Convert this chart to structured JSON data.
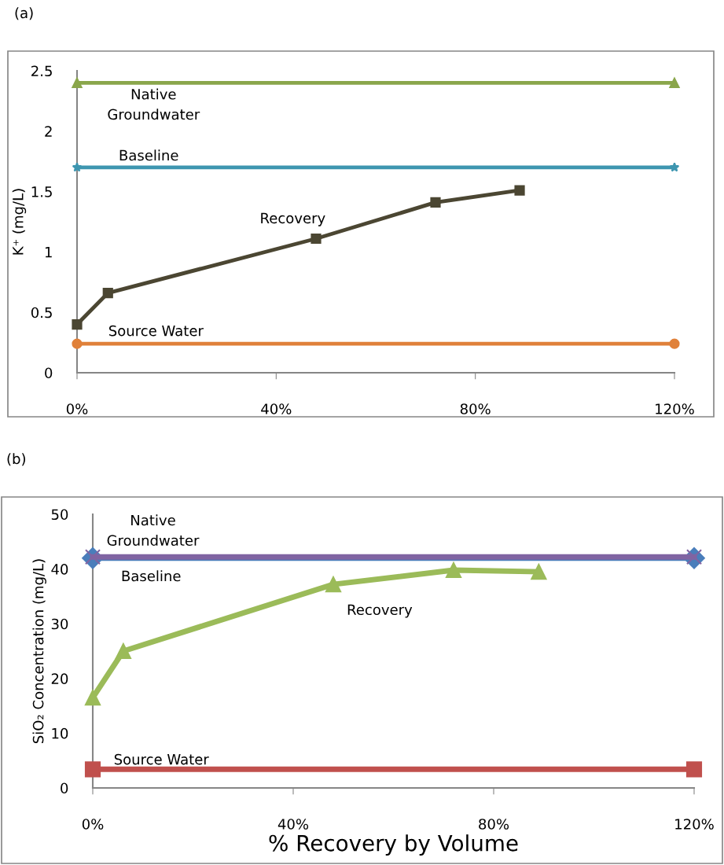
{
  "chart_data": [
    {
      "type": "line",
      "title": "(a)",
      "ylabel": "K⁺ (mg/L)",
      "xlim": [
        0,
        120
      ],
      "ylim": [
        0,
        2.5
      ],
      "xticks": [
        {
          "value": 0,
          "label": "0%"
        },
        {
          "value": 40,
          "label": "40%"
        },
        {
          "value": 80,
          "label": "80%"
        },
        {
          "value": 120,
          "label": "120%"
        }
      ],
      "yticks": [
        0,
        0.5,
        1,
        1.5,
        2,
        2.5
      ],
      "grid": false,
      "legend": false,
      "line_style": "solid",
      "series": [
        {
          "name": "Native\nGroundwater",
          "color": "#8aa64b",
          "marker": "triangle",
          "x": [
            0,
            120
          ],
          "values": [
            2.4,
            2.4
          ]
        },
        {
          "name": "Baseline",
          "color": "#3e96b0",
          "marker": "star",
          "x": [
            0,
            120
          ],
          "values": [
            1.7,
            1.7
          ]
        },
        {
          "name": "Recovery",
          "color": "#4b4632",
          "marker": "square",
          "x": [
            0,
            6.2,
            48,
            72,
            88.9
          ],
          "values": [
            0.4,
            0.66,
            1.11,
            1.41,
            1.51
          ]
        },
        {
          "name": "Source Water",
          "color": "#e0813a",
          "marker": "circle",
          "x": [
            0,
            120
          ],
          "values": [
            0.24,
            0.24
          ]
        }
      ]
    },
    {
      "type": "line",
      "title": "(b)",
      "xlabel": "% Recovery by Volume",
      "ylabel": "SiO₂ Concentration (mg/L)",
      "xlim": [
        0,
        120
      ],
      "ylim": [
        0,
        50
      ],
      "xticks": [
        {
          "value": 0,
          "label": "0%"
        },
        {
          "value": 40,
          "label": "40%"
        },
        {
          "value": 80,
          "label": "80%"
        },
        {
          "value": 120,
          "label": "120%"
        }
      ],
      "yticks": [
        0,
        10,
        20,
        30,
        40,
        50
      ],
      "grid": false,
      "legend": false,
      "line_style": "solid",
      "series": [
        {
          "name": "Native\nGroundwater",
          "color": "#8064a2",
          "marker": "cross",
          "x": [
            0,
            120
          ],
          "values": [
            42.2,
            42.2
          ]
        },
        {
          "name": "Baseline",
          "color": "#4a7ebb",
          "marker": "diamond",
          "x": [
            0,
            120
          ],
          "values": [
            42,
            42
          ]
        },
        {
          "name": "Recovery",
          "color": "#9bbb59",
          "marker": "triangle",
          "x": [
            0,
            6.1,
            48,
            72,
            89
          ],
          "values": [
            16.5,
            25,
            37.2,
            39.8,
            39.5
          ]
        },
        {
          "name": "Source Water",
          "color": "#c0504d",
          "marker": "square",
          "x": [
            0,
            120
          ],
          "values": [
            3.4,
            3.4
          ]
        }
      ]
    }
  ]
}
